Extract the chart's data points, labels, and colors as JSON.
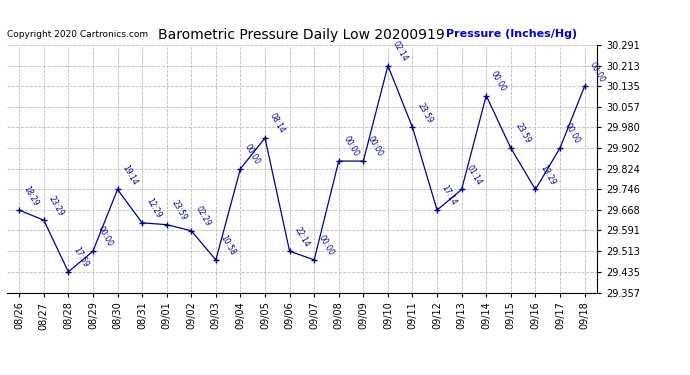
{
  "title": "Barometric Pressure Daily Low 20200919",
  "copyright": "Copyright 2020 Cartronics.com",
  "ylabel": "Pressure (Inches/Hg)",
  "ylabel_color": "#0000cc",
  "line_color": "#00008B",
  "marker_color": "#00008B",
  "background_color": "#ffffff",
  "grid_color": "#bbbbbb",
  "ylim": [
    29.357,
    30.291
  ],
  "yticks": [
    29.357,
    29.435,
    29.513,
    29.591,
    29.668,
    29.746,
    29.824,
    29.902,
    29.98,
    30.057,
    30.135,
    30.213,
    30.291
  ],
  "dates": [
    "08/26",
    "08/27",
    "08/28",
    "08/29",
    "08/30",
    "08/31",
    "09/01",
    "09/02",
    "09/03",
    "09/04",
    "09/05",
    "09/06",
    "09/07",
    "09/08",
    "09/09",
    "09/10",
    "09/11",
    "09/12",
    "09/13",
    "09/14",
    "09/15",
    "09/16",
    "09/17",
    "09/18"
  ],
  "values": [
    29.668,
    29.63,
    29.435,
    29.513,
    29.746,
    29.62,
    29.613,
    29.59,
    29.48,
    29.824,
    29.94,
    29.513,
    29.48,
    29.853,
    29.853,
    30.213,
    29.98,
    29.668,
    29.746,
    30.1,
    29.902,
    29.746,
    29.902,
    30.135
  ],
  "labels": [
    "18:29",
    "23:29",
    "17:59",
    "00:00",
    "19:14",
    "12:29",
    "23:59",
    "02:29",
    "10:58",
    "00:00",
    "08:14",
    "22:14",
    "00:00",
    "00:00",
    "00:00",
    "02:14",
    "23:59",
    "17:14",
    "01:14",
    "00:00",
    "23:59",
    "13:29",
    "00:00",
    "00:00"
  ]
}
